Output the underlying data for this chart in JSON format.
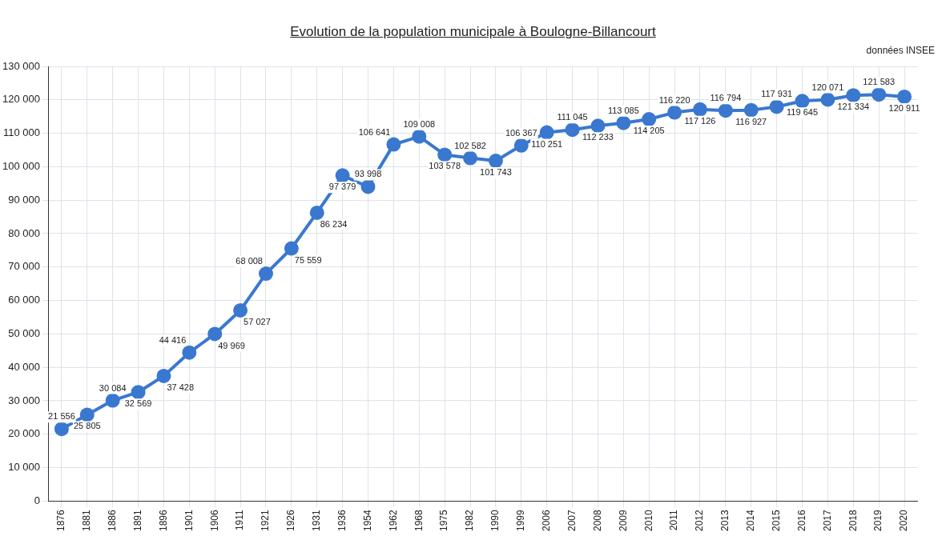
{
  "chart_data": {
    "type": "line",
    "title": "Evolution de la population municipale à Boulogne-Billancourt",
    "annotations": [
      "données INSEE"
    ],
    "categories": [
      "1876",
      "1881",
      "1886",
      "1891",
      "1896",
      "1901",
      "1906",
      "1911",
      "1921",
      "1926",
      "1931",
      "1936",
      "1954",
      "1962",
      "1968",
      "1975",
      "1982",
      "1990",
      "1999",
      "2006",
      "2007",
      "2008",
      "2009",
      "2010",
      "2011",
      "2012",
      "2013",
      "2014",
      "2015",
      "2016",
      "2017",
      "2018",
      "2019",
      "2020"
    ],
    "series": [
      {
        "color": "#3a78d0",
        "values": [
          21556,
          25805,
          30084,
          32569,
          37428,
          44416,
          49969,
          57027,
          68008,
          75559,
          86234,
          97379,
          93998,
          106641,
          109008,
          103578,
          102582,
          101743,
          106367,
          110251,
          111045,
          112233,
          113085,
          114205,
          116220,
          117126,
          116794,
          116927,
          117931,
          119645,
          120071,
          121334,
          121583,
          120911
        ],
        "value_labels": [
          "21 556",
          "25 805",
          "30 084",
          "32 569",
          "37 428",
          "44 416",
          "49 969",
          "57 027",
          "68 008",
          "75 559",
          "86 234",
          "97 379",
          "93 998",
          "106 641",
          "109 008",
          "103 578",
          "102 582",
          "101 743",
          "106 367",
          "110 251",
          "111 045",
          "112 233",
          "113 085",
          "114 205",
          "116 220",
          "117 126",
          "116 794",
          "116 927",
          "117 931",
          "119 645",
          "120 071",
          "121 334",
          "121 583",
          "120 911"
        ]
      }
    ],
    "ylim": [
      0,
      130000
    ],
    "yticks": [
      {
        "value": 0,
        "label": "0"
      },
      {
        "value": 10000,
        "label": "10 000"
      },
      {
        "value": 20000,
        "label": "20 000"
      },
      {
        "value": 30000,
        "label": "30 000"
      },
      {
        "value": 40000,
        "label": "40 000"
      },
      {
        "value": 50000,
        "label": "50 000"
      },
      {
        "value": 60000,
        "label": "60 000"
      },
      {
        "value": 70000,
        "label": "70 000"
      },
      {
        "value": 80000,
        "label": "80 000"
      },
      {
        "value": 90000,
        "label": "90 000"
      },
      {
        "value": 100000,
        "label": "100 000"
      },
      {
        "value": 110000,
        "label": "110 000"
      },
      {
        "value": 120000,
        "label": "120 000"
      },
      {
        "value": 130000,
        "label": "130 000"
      }
    ],
    "grid": true,
    "legend": false,
    "marker": "circle",
    "line_style": "solid"
  }
}
